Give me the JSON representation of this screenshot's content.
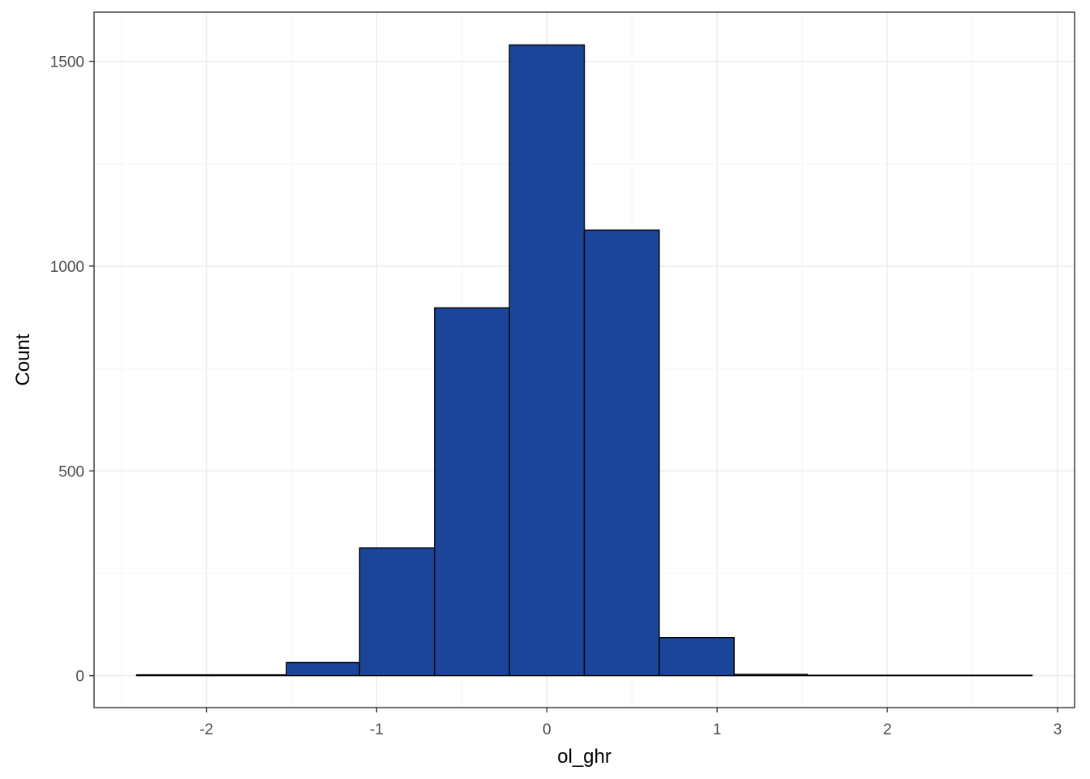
{
  "chart_data": {
    "type": "bar",
    "subtype": "histogram",
    "xlabel": "ol_ghr",
    "ylabel": "Count",
    "xlim": [
      -2.66,
      3.1
    ],
    "ylim": [
      -78,
      1620
    ],
    "x_ticks": [
      -2,
      -1,
      0,
      1,
      2,
      3
    ],
    "x_tick_labels": [
      "-2",
      "-1",
      "0",
      "1",
      "2",
      "3"
    ],
    "x_minor_ticks": [
      -2.5,
      -1.5,
      -0.5,
      0.5,
      1.5,
      2.5
    ],
    "y_ticks": [
      0,
      500,
      1000,
      1500
    ],
    "y_tick_labels": [
      "0",
      "500",
      "1000",
      "1500"
    ],
    "y_minor_ticks": [
      250,
      750,
      1250
    ],
    "bins": [
      {
        "x0": -2.41,
        "x1": -1.97,
        "count": 2
      },
      {
        "x0": -1.97,
        "x1": -1.53,
        "count": 2
      },
      {
        "x0": -1.53,
        "x1": -1.1,
        "count": 32
      },
      {
        "x0": -1.1,
        "x1": -0.66,
        "count": 312
      },
      {
        "x0": -0.66,
        "x1": -0.22,
        "count": 898
      },
      {
        "x0": -0.22,
        "x1": 0.22,
        "count": 1540
      },
      {
        "x0": 0.22,
        "x1": 0.66,
        "count": 1088
      },
      {
        "x0": 0.66,
        "x1": 1.1,
        "count": 93
      },
      {
        "x0": 1.1,
        "x1": 1.53,
        "count": 3
      },
      {
        "x0": 1.53,
        "x1": 1.97,
        "count": 1
      },
      {
        "x0": 1.97,
        "x1": 2.41,
        "count": 1
      },
      {
        "x0": 2.41,
        "x1": 2.85,
        "count": 1
      }
    ],
    "grid": true,
    "legend": "none",
    "colors": {
      "bar_fill": "#1a4599",
      "bar_stroke": "#000000",
      "grid_major": "#ebebeb",
      "grid_minor": "#f5f5f5",
      "panel_border": "#333333",
      "tick_text": "#4d4d4d"
    }
  }
}
